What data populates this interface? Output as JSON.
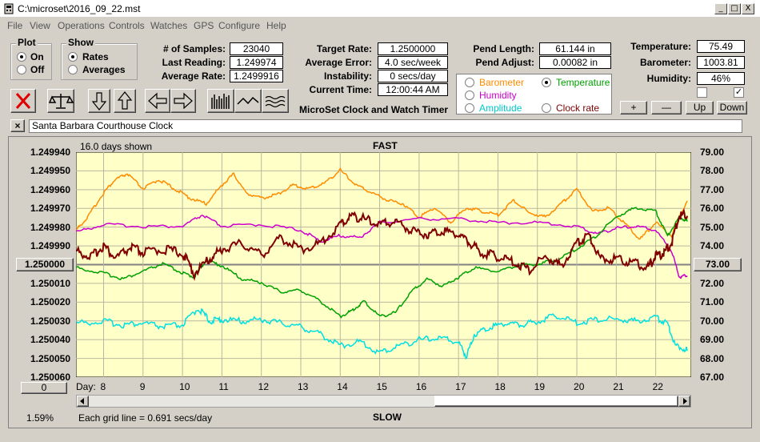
{
  "window": {
    "title": "C:\\microset\\2016_09_22.mst",
    "min": "_",
    "max": "□",
    "close": "X"
  },
  "menu": [
    "File",
    "View",
    "Operations",
    "Controls",
    "Watches",
    "GPS",
    "Configure",
    "Help"
  ],
  "plot_group": {
    "title": "Plot",
    "on": "On",
    "off": "Off",
    "selected": "On"
  },
  "show_group": {
    "title": "Show",
    "rates": "Rates",
    "averages": "Averages",
    "selected": "Rates"
  },
  "stats": {
    "samples_label": "# of Samples:",
    "samples": "23040",
    "last_label": "Last Reading:",
    "last": "1.249974",
    "avg_label": "Average Rate:",
    "avg": "1.2499916",
    "target_label": "Target Rate:",
    "target": "1.2500000",
    "err_label": "Average Error:",
    "err": "4.0 sec/week",
    "instab_label": "Instability:",
    "instab": "0 secs/day",
    "time_label": "Current Time:",
    "time": "12:00:44 AM",
    "pend_len_label": "Pend Length:",
    "pend_len": "61.144 in",
    "pend_adj_label": "Pend Adjust:",
    "pend_adj": "0.00082 in",
    "temp_label": "Temperature:",
    "temp": "75.49",
    "baro_label": "Barometer:",
    "baro": "1003.81",
    "hum_label": "Humidity:",
    "hum": "46%"
  },
  "app_title": "MicroSet Clock and Watch Timer",
  "legend": {
    "barometer": "Barometer",
    "temperature": "Temperature",
    "humidity": "Humidity",
    "amplitude": "Amplitude",
    "clock_rate": "Clock rate",
    "selected": "Temperature",
    "colors": {
      "barometer": "#ff8c00",
      "temperature": "#00a000",
      "humidity": "#cc00cc",
      "amplitude": "#00d0d0",
      "clock_rate": "#800000"
    }
  },
  "small_buttons": {
    "plus": "+",
    "minus": "—",
    "up": "Up",
    "down": "Down"
  },
  "checkboxes": {
    "left": false,
    "right": true
  },
  "toolbar_icons": [
    "stop-icon",
    "balance-scale-icon",
    "arrow-down-icon",
    "arrow-up-icon",
    "arrow-left-icon",
    "arrow-right-icon",
    "bar-graph-icon",
    "wave-icon",
    "multi-wave-icon"
  ],
  "clock_name": {
    "close": "×",
    "value": "Santa Barbara Courthouse Clock"
  },
  "plot": {
    "days_shown": "16.0 days shown",
    "top_label": "FAST",
    "bottom_label": "SLOW",
    "grid_note": "Each grid line = 0.691 secs/day",
    "percent": "1.59%",
    "left_button": "1.250000",
    "right_button": "73.00",
    "bottom_left_button": "0",
    "day_label": "Day:",
    "left_ticks": [
      "1.249940",
      "1.249950",
      "1.249960",
      "1.249970",
      "1.249980",
      "1.249990",
      "1.250010",
      "1.250020",
      "1.250030",
      "1.250040",
      "1.250050",
      "1.250060"
    ],
    "right_ticks": [
      "79.00",
      "78.00",
      "77.00",
      "76.00",
      "75.00",
      "74.00",
      "72.00",
      "71.00",
      "70.00",
      "69.00",
      "68.00",
      "67.00"
    ],
    "days": [
      "8",
      "9",
      "10",
      "11",
      "12",
      "13",
      "14",
      "15",
      "16",
      "17",
      "18",
      "19",
      "20",
      "21",
      "22"
    ],
    "bg": "#ffffc8"
  },
  "chart_data": {
    "type": "line",
    "x_range": [
      7.3,
      22.9
    ],
    "left_axis_range": [
      1.24994,
      1.25006
    ],
    "right_axis_range": [
      67.0,
      79.0
    ],
    "grid": true,
    "series": [
      {
        "name": "Barometer",
        "color": "#ff8c00",
        "axis": "left",
        "x": [
          7.3,
          7.6,
          8.0,
          8.3,
          8.6,
          9.0,
          9.4,
          9.8,
          10.2,
          10.6,
          11.0,
          11.3,
          11.6,
          12.0,
          12.4,
          12.8,
          13.2,
          13.6,
          14.0,
          14.4,
          14.8,
          15.2,
          15.6,
          16.0,
          16.4,
          16.8,
          17.2,
          17.6,
          18.0,
          18.4,
          18.8,
          19.2,
          19.6,
          20.0,
          20.4,
          20.8,
          21.2,
          21.6,
          22.0,
          22.4,
          22.8
        ],
        "y": [
          1.249982,
          1.249975,
          1.249962,
          1.249955,
          1.249952,
          1.24996,
          1.249955,
          1.24996,
          1.249965,
          1.249968,
          1.249958,
          1.249952,
          1.249962,
          1.249965,
          1.249963,
          1.249958,
          1.24996,
          1.249957,
          1.24995,
          1.249958,
          1.249962,
          1.249966,
          1.249968,
          1.249975,
          1.24997,
          1.249978,
          1.24997,
          1.249972,
          1.249974,
          1.249966,
          1.249973,
          1.249975,
          1.249968,
          1.24996,
          1.249972,
          1.24997,
          1.249978,
          1.249987,
          1.249978,
          1.249985,
          1.249966
        ]
      },
      {
        "name": "Humidity",
        "color": "#cc00cc",
        "axis": "left",
        "x": [
          7.3,
          8.0,
          9.0,
          10.0,
          10.5,
          11.0,
          12.0,
          13.0,
          13.5,
          14.0,
          14.5,
          15.0,
          16.0,
          17.0,
          18.0,
          19.0,
          20.0,
          20.5,
          21.0,
          21.5,
          22.0,
          22.4,
          22.6,
          22.8
        ],
        "y": [
          1.249983,
          1.249979,
          1.24998,
          1.24998,
          1.249974,
          1.24998,
          1.249979,
          1.249982,
          1.249988,
          1.249985,
          1.249986,
          1.249978,
          1.249976,
          1.249976,
          1.249978,
          1.249978,
          1.24998,
          1.249984,
          1.249981,
          1.24998,
          1.249982,
          1.249993,
          1.250007,
          1.250006
        ]
      },
      {
        "name": "Temperature",
        "color": "#00a000",
        "axis": "right",
        "x": [
          7.3,
          8.0,
          8.5,
          9.0,
          9.5,
          10.0,
          10.3,
          10.6,
          11.0,
          11.5,
          12.0,
          12.5,
          13.0,
          13.5,
          14.0,
          14.3,
          14.6,
          15.0,
          15.4,
          15.8,
          16.2,
          16.6,
          17.0,
          17.4,
          18.0,
          18.5,
          19.0,
          19.5,
          20.0,
          20.5,
          21.0,
          21.5,
          22.0,
          22.3,
          22.6,
          22.8
        ],
        "y": [
          72.8,
          72.5,
          72.2,
          72.6,
          73.0,
          72.5,
          72.3,
          73.2,
          72.9,
          72.2,
          72.0,
          71.5,
          71.6,
          71.0,
          70.2,
          70.5,
          71.0,
          70.2,
          70.4,
          71.5,
          72.2,
          71.8,
          72.3,
          72.8,
          72.6,
          72.9,
          73.0,
          73.2,
          73.8,
          74.5,
          75.5,
          76.0,
          75.8,
          74.5,
          75.5,
          75.3
        ]
      },
      {
        "name": "Amplitude",
        "color": "#00e0e0",
        "axis": "right",
        "x": [
          7.3,
          8.0,
          8.5,
          9.0,
          9.5,
          10.0,
          10.4,
          10.7,
          11.0,
          11.5,
          12.0,
          12.5,
          13.0,
          13.5,
          14.0,
          14.5,
          15.0,
          15.5,
          16.0,
          16.5,
          17.0,
          17.2,
          17.4,
          17.8,
          18.2,
          18.6,
          19.0,
          19.5,
          20.0,
          20.5,
          21.0,
          21.5,
          22.0,
          22.3,
          22.5,
          22.8
        ],
        "y": [
          69.8,
          69.9,
          69.7,
          69.8,
          69.6,
          69.7,
          70.6,
          69.9,
          70.0,
          69.9,
          70.0,
          69.8,
          69.6,
          69.2,
          68.6,
          68.8,
          68.2,
          68.6,
          68.9,
          69.0,
          68.8,
          68.0,
          69.2,
          69.6,
          69.8,
          69.7,
          69.9,
          70.2,
          69.8,
          70.0,
          70.0,
          69.9,
          70.1,
          69.8,
          68.6,
          68.4
        ]
      },
      {
        "name": "Clock rate",
        "color": "#800000",
        "axis": "left",
        "x": [
          7.3,
          7.7,
          8.0,
          8.3,
          8.7,
          9.0,
          9.5,
          10.0,
          10.3,
          10.7,
          11.0,
          11.5,
          12.0,
          12.5,
          13.0,
          13.5,
          14.0,
          14.3,
          14.6,
          15.0,
          15.4,
          15.8,
          16.2,
          16.6,
          17.0,
          17.3,
          17.6,
          18.0,
          18.4,
          18.8,
          19.2,
          19.6,
          20.0,
          20.3,
          20.6,
          21.0,
          21.4,
          21.8,
          22.0,
          22.2,
          22.4,
          22.6,
          22.8
        ],
        "y": [
          1.249994,
          1.249997,
          1.249991,
          1.249998,
          1.249992,
          1.249995,
          1.249993,
          1.249995,
          1.250006,
          1.249998,
          1.249993,
          1.24999,
          1.249996,
          1.249987,
          1.249993,
          1.24999,
          1.24998,
          1.249975,
          1.249977,
          1.24998,
          1.249978,
          1.249983,
          1.249985,
          1.249983,
          1.249985,
          1.24999,
          1.249995,
          1.249997,
          1.25,
          1.250004,
          1.249997,
          1.250002,
          1.24999,
          1.249985,
          1.249998,
          1.249998,
          1.25,
          1.250003,
          1.249997,
          1.249995,
          1.24999,
          1.249975,
          1.249974
        ]
      }
    ]
  }
}
